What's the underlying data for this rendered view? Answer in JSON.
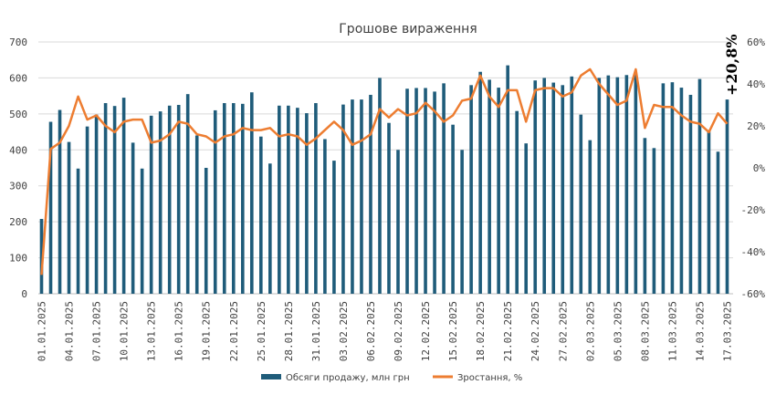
{
  "chart_data": {
    "type": "bar+line",
    "title": "Грошове вираження",
    "y_left": {
      "min": 0,
      "max": 700,
      "ticks": [
        "0",
        "100",
        "200",
        "300",
        "400",
        "500",
        "600",
        "700"
      ]
    },
    "y_right": {
      "min": -60,
      "max": 60,
      "ticks": [
        "-60%",
        "-40%",
        "-20%",
        "0%",
        "20%",
        "40%",
        "60%"
      ]
    },
    "x_labels": [
      "01.01.2025",
      "04.01.2025",
      "07.01.2025",
      "10.01.2025",
      "13.01.2025",
      "16.01.2025",
      "19.01.2025",
      "22.01.2025",
      "25.01.2025",
      "28.01.2025",
      "31.01.2025",
      "03.02.2025",
      "06.02.2025",
      "09.02.2025",
      "12.02.2025",
      "15.02.2025",
      "18.02.2025",
      "21.02.2025",
      "24.02.2025",
      "27.02.2025",
      "02.03.2025",
      "05.03.2025",
      "08.03.2025",
      "11.03.2025",
      "14.03.2025",
      "17.03.2025"
    ],
    "series": [
      {
        "name": "Обсяги продажу, млн грн",
        "kind": "bar",
        "axis": "left",
        "color": "#1F5C7A",
        "values": [
          208,
          478,
          511,
          422,
          348,
          465,
          498,
          530,
          522,
          545,
          420,
          348,
          495,
          507,
          523,
          525,
          555,
          440,
          350,
          510,
          530,
          530,
          528,
          560,
          437,
          362,
          523,
          523,
          517,
          502,
          530,
          430,
          370,
          526,
          540,
          540,
          553,
          600,
          475,
          400,
          570,
          572,
          572,
          562,
          585,
          470,
          400,
          580,
          617,
          595,
          573,
          635,
          508,
          418,
          593,
          600,
          587,
          580,
          604,
          498,
          427,
          600,
          607,
          602,
          608,
          610,
          433,
          405,
          585,
          588,
          573,
          553,
          597,
          455,
          395,
          540
        ]
      },
      {
        "name": "Зростання, %",
        "kind": "line",
        "axis": "right",
        "color": "#ED7D31",
        "values": [
          -51,
          9,
          12,
          20,
          34,
          23,
          25,
          20,
          17,
          22,
          23,
          23,
          12,
          13,
          16,
          22,
          21,
          16,
          15,
          12,
          15,
          16,
          19,
          18,
          18,
          19,
          15,
          16,
          15,
          11,
          14,
          18,
          22,
          18,
          11,
          13,
          16,
          28,
          24,
          28,
          25,
          26,
          31,
          27,
          22,
          25,
          32,
          33,
          44,
          34,
          29,
          37,
          37,
          22,
          37,
          38,
          38,
          34,
          36,
          44,
          47,
          40,
          35,
          30,
          32,
          47,
          19,
          30,
          29,
          29,
          25,
          22,
          21,
          17,
          26,
          21
        ]
      }
    ],
    "annotation": "+20,8%"
  }
}
